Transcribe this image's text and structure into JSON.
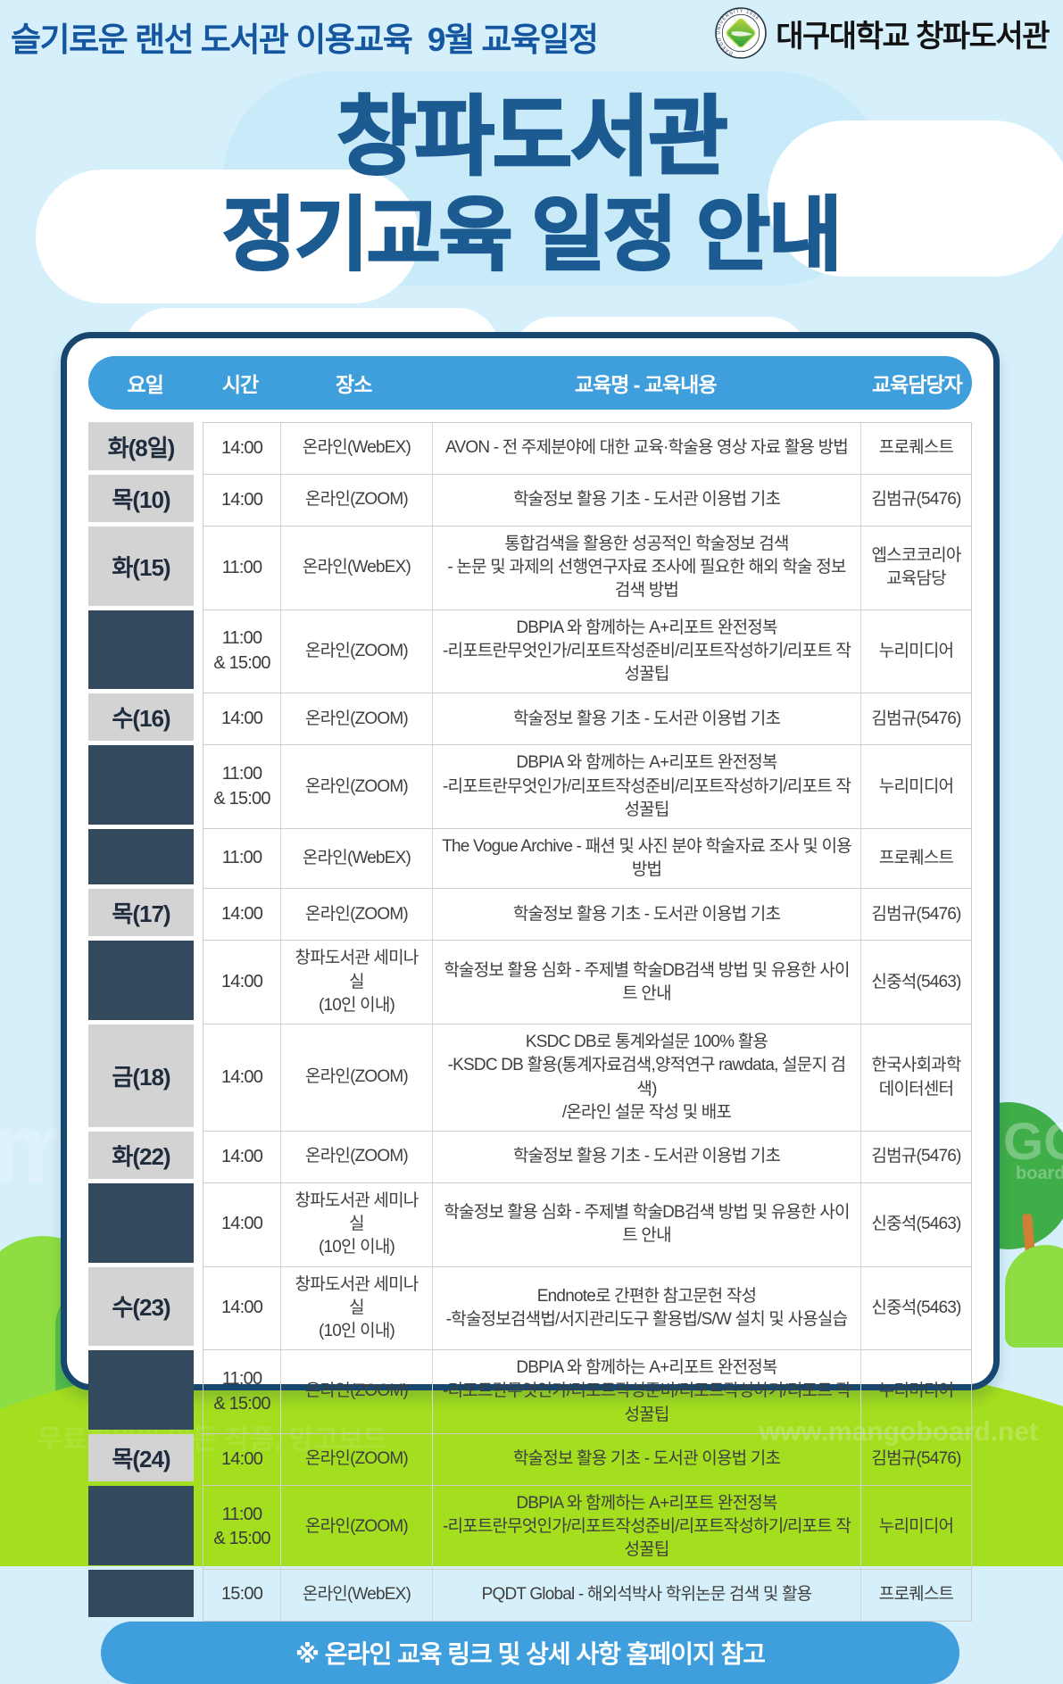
{
  "colors": {
    "accent_blue": "#3f9edc",
    "title_blue": "#1c5b92",
    "header_blue": "#1556a0",
    "dark_cell": "#33495e",
    "gray_cell": "#d3d3d3",
    "card_border": "#17466e",
    "grass_green": "#a3de1f",
    "sky_blue": "#d6f0fb"
  },
  "header": {
    "event_title": "슬기로운 랜선 도서관 이용교육  9월 교육일정",
    "brand": "대구대학교 창파도서관",
    "seal_text": "DAEGU UNIVERSITY 1956"
  },
  "main_title": {
    "line1": "창파도서관",
    "line2": "정기교육 일정 안내"
  },
  "table": {
    "headers": [
      "요일",
      "시간",
      "장소",
      "교육명 - 교육내용",
      "교육담당자"
    ],
    "rows": [
      {
        "day": "화(8일)",
        "time": [
          "14:00"
        ],
        "place": [
          "온라인(WebEX)"
        ],
        "content": [
          "AVON - 전 주제분야에 대한 교육·학술용 영상 자료 활용 방법"
        ],
        "manager": "프로퀘스트"
      },
      {
        "day": "목(10)",
        "time": [
          "14:00"
        ],
        "place": [
          "온라인(ZOOM)"
        ],
        "content": [
          "학술정보 활용 기초 - 도서관 이용법 기초"
        ],
        "manager": "김범규(5476)"
      },
      {
        "day": "화(15)",
        "time": [
          "11:00"
        ],
        "place": [
          "온라인(WebEX)"
        ],
        "content": [
          "통합검색을 활용한 성공적인 학술정보 검색",
          "- 논문 및 과제의 선행연구자료 조사에 필요한 해외 학술 정보 검색 방법"
        ],
        "manager": "엡스코코리아 교육담당"
      },
      {
        "day": "",
        "time": [
          "11:00",
          "& 15:00"
        ],
        "place": [
          "온라인(ZOOM)"
        ],
        "content": [
          "DBPIA 와 함께하는 A+리포트 완전정복",
          "-리포트란무엇인가/리포트작성준비/리포트작성하기/리포트 작성꿀팁"
        ],
        "manager": "누리미디어"
      },
      {
        "day": "수(16)",
        "time": [
          "14:00"
        ],
        "place": [
          "온라인(ZOOM)"
        ],
        "content": [
          "학술정보 활용 기초 - 도서관 이용법 기초"
        ],
        "manager": "김범규(5476)"
      },
      {
        "day": "",
        "time": [
          "11:00",
          "& 15:00"
        ],
        "place": [
          "온라인(ZOOM)"
        ],
        "content": [
          "DBPIA 와 함께하는 A+리포트 완전정복",
          "-리포트란무엇인가/리포트작성준비/리포트작성하기/리포트 작성꿀팁"
        ],
        "manager": "누리미디어"
      },
      {
        "day": "",
        "time": [
          "11:00"
        ],
        "place": [
          "온라인(WebEX)"
        ],
        "content": [
          "The Vogue Archive - 패션 및 사진 분야 학술자료 조사 및 이용방법"
        ],
        "manager": "프로퀘스트"
      },
      {
        "day": "목(17)",
        "time": [
          "14:00"
        ],
        "place": [
          "온라인(ZOOM)"
        ],
        "content": [
          "학술정보 활용 기초 - 도서관 이용법 기초"
        ],
        "manager": "김범규(5476)"
      },
      {
        "day": "",
        "time": [
          "14:00"
        ],
        "place": [
          "창파도서관 세미나실",
          "(10인 이내)"
        ],
        "content": [
          "학술정보 활용 심화 - 주제별 학술DB검색 방법 및 유용한 사이트 안내"
        ],
        "manager": "신중석(5463)"
      },
      {
        "day": "금(18)",
        "time": [
          "14:00"
        ],
        "place": [
          "온라인(ZOOM)"
        ],
        "content": [
          "KSDC DB로 통계와설문 100% 활용",
          "-KSDC DB 활용(통계자료검색,양적연구 rawdata, 설문지 검색)",
          "/온라인 설문 작성 및 배포"
        ],
        "manager": "한국사회과학데이터센터"
      },
      {
        "day": "화(22)",
        "time": [
          "14:00"
        ],
        "place": [
          "온라인(ZOOM)"
        ],
        "content": [
          "학술정보 활용 기초 - 도서관 이용법 기초"
        ],
        "manager": "김범규(5476)"
      },
      {
        "day": "",
        "time": [
          "14:00"
        ],
        "place": [
          "창파도서관 세미나실",
          "(10인 이내)"
        ],
        "content": [
          "학술정보 활용 심화 - 주제별 학술DB검색 방법 및 유용한 사이트 안내"
        ],
        "manager": "신중석(5463)"
      },
      {
        "day": "수(23)",
        "time": [
          "14:00"
        ],
        "place": [
          "창파도서관 세미나실",
          "(10인 이내)"
        ],
        "content": [
          "Endnote로 간편한 참고문헌 작성",
          "-학술정보검색법/서지관리도구 활용법/S/W 설치 및 사용실습"
        ],
        "manager": "신중석(5463)"
      },
      {
        "day": "",
        "time": [
          "11:00",
          "& 15:00"
        ],
        "place": [
          "온라인(ZOOM)"
        ],
        "content": [
          "DBPIA 와 함께하는 A+리포트 완전정복",
          "-리포트란무엇인가/리포트작성준비/리포트작성하기/리포트 작성꿀팁"
        ],
        "manager": "누리미디어"
      },
      {
        "day": "목(24)",
        "time": [
          "14:00"
        ],
        "place": [
          "온라인(ZOOM)"
        ],
        "content": [
          "학술정보 활용 기초 - 도서관 이용법 기초"
        ],
        "manager": "김범규(5476)"
      },
      {
        "day": "",
        "time": [
          "11:00",
          "& 15:00"
        ],
        "place": [
          "온라인(ZOOM)"
        ],
        "content": [
          "DBPIA 와 함께하는 A+리포트 완전정복",
          "-리포트란무엇인가/리포트작성준비/리포트작성하기/리포트 작성꿀팁"
        ],
        "manager": "누리미디어"
      },
      {
        "day": "",
        "time": [
          "15:00"
        ],
        "place": [
          "온라인(WebEX)"
        ],
        "content": [
          "PQDT Global - 해외석박사 학위논문 검색 및 활용"
        ],
        "manager": "프로퀘스트"
      }
    ]
  },
  "footer": {
    "notice": "※ 온라인 교육 링크 및 상세 사항 홈페이지 참고"
  },
  "watermark": {
    "left_fragment": "ma",
    "right_fragment": "GO",
    "right_small": "board",
    "site": "www.mangoboard.net",
    "caption": "무료회원이 만든 작품, 망고보드"
  }
}
